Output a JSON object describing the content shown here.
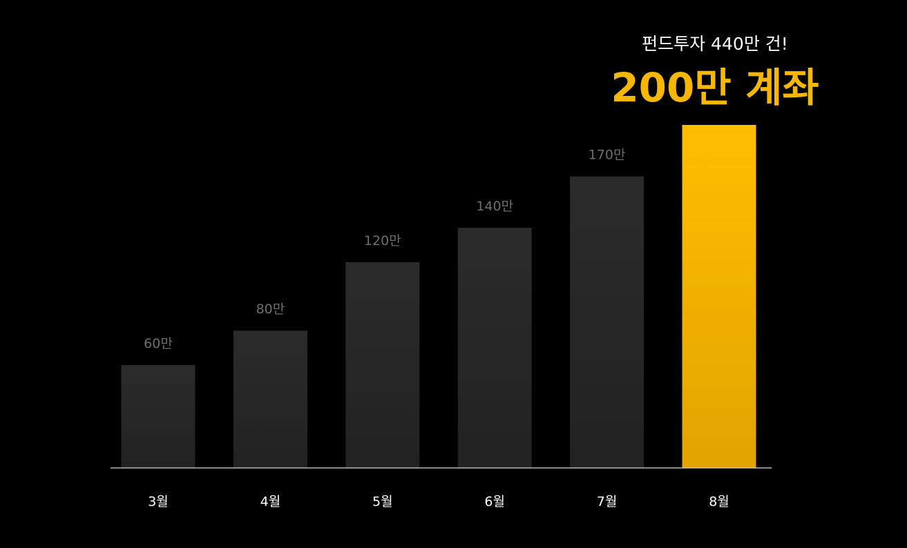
{
  "colors": {
    "background": "#000000",
    "bar_default": "#2a2a2a",
    "bar_highlight": "#f5b700",
    "value_label": "#6e6e6e",
    "category_label": "#ffffff",
    "headline_accent": "#f5b700",
    "baseline": "#d9d9d9"
  },
  "headline": {
    "subtitle": "펀드투자 440만 건!",
    "title": "200만 계좌"
  },
  "chart_data": {
    "type": "bar",
    "categories": [
      "3월",
      "4월",
      "5월",
      "6월",
      "7월",
      "8월"
    ],
    "values": [
      60,
      80,
      120,
      140,
      170,
      200
    ],
    "value_labels": [
      "60만",
      "80만",
      "120만",
      "140만",
      "170만",
      ""
    ],
    "highlight_index": 5,
    "title": "",
    "xlabel": "",
    "ylabel": "",
    "ylim": [
      0,
      200
    ],
    "grid": false,
    "legend": "none"
  }
}
